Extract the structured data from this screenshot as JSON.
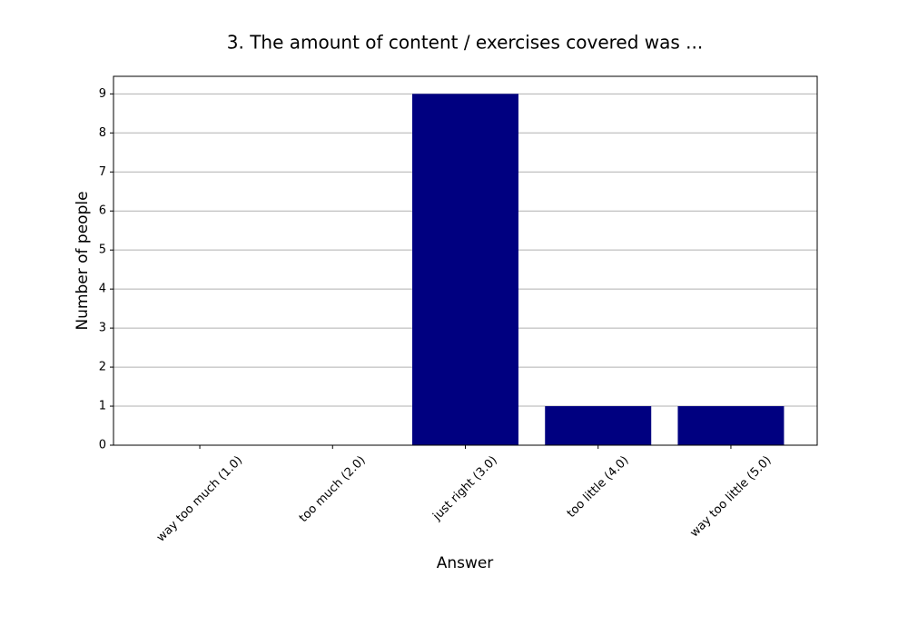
{
  "chart_data": {
    "type": "bar",
    "title": "3. The amount of content / exercises covered was ...",
    "x_label": "Answer",
    "y_label": "Number of people",
    "categories": [
      "way too much (1.0)",
      "too much (2.0)",
      "just right (3.0)",
      "too little (4.0)",
      "way too little (5.0)"
    ],
    "values": [
      0,
      0,
      9,
      1,
      1
    ],
    "color": "#000080",
    "ylim": [
      0,
      9.45
    ],
    "yticks": [
      0,
      1,
      2,
      3,
      4,
      5,
      6,
      7,
      8,
      9
    ],
    "grid": true
  }
}
